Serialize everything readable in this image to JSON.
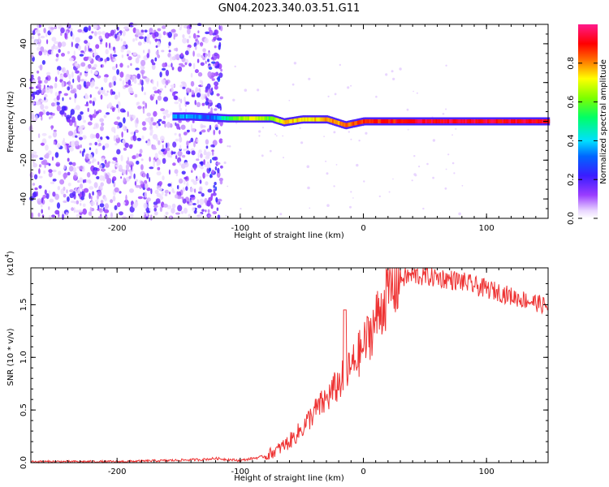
{
  "title": "GN04.2023.340.03.51.G11",
  "chart_data": [
    {
      "type": "heatmap",
      "title": "GN04.2023.340.03.51.G11",
      "xlabel": "Height of straight line (km)",
      "ylabel": "Frequency (Hz)",
      "xlim": [
        -270,
        150
      ],
      "ylim": [
        -50,
        50
      ],
      "x_ticks": [
        -200,
        -100,
        0,
        100
      ],
      "y_ticks": [
        -40,
        -20,
        0,
        20,
        40
      ],
      "colorbar": {
        "label": "Normalized spectral amplitude",
        "range": [
          0,
          1
        ],
        "ticks": [
          0.0,
          0.2,
          0.4,
          0.6,
          0.8
        ],
        "colormap": "rainbow (white-purple-blue-cyan-green-yellow-red-pink)"
      },
      "features": {
        "noise_region_x": [
          -270,
          -115
        ],
        "signal_ridge": [
          {
            "x": -155,
            "freq": 2.5,
            "amp": 0.35
          },
          {
            "x": -140,
            "freq": 2.5,
            "amp": 0.4
          },
          {
            "x": -125,
            "freq": 2.0,
            "amp": 0.3
          },
          {
            "x": -110,
            "freq": 1.5,
            "amp": 0.55
          },
          {
            "x": -90,
            "freq": 1.5,
            "amp": 0.75
          },
          {
            "x": -75,
            "freq": 1.5,
            "amp": 0.6
          },
          {
            "x": -65,
            "freq": -0.5,
            "amp": 0.8
          },
          {
            "x": -50,
            "freq": 1.0,
            "amp": 0.75
          },
          {
            "x": -30,
            "freq": 1.0,
            "amp": 0.8
          },
          {
            "x": -15,
            "freq": -2.0,
            "amp": 0.85
          },
          {
            "x": 0,
            "freq": 0.0,
            "amp": 0.9
          },
          {
            "x": 50,
            "freq": 0.0,
            "amp": 0.95
          },
          {
            "x": 100,
            "freq": 0.0,
            "amp": 0.95
          },
          {
            "x": 150,
            "freq": 0.0,
            "amp": 0.95
          }
        ]
      }
    },
    {
      "type": "line",
      "xlabel": "Height of straight line (km)",
      "ylabel": "SNR (10 * v/v)",
      "y_multiplier_label": "(x10",
      "y_multiplier_exp": "4",
      "xlim": [
        -270,
        150
      ],
      "ylim": [
        0,
        1.85
      ],
      "x_ticks": [
        -200,
        -100,
        0,
        100
      ],
      "y_ticks": [
        0.0,
        0.5,
        1.0,
        1.5
      ],
      "series_color": "#ee3333",
      "x": [
        -270,
        -240,
        -200,
        -160,
        -130,
        -120,
        -110,
        -100,
        -90,
        -80,
        -70,
        -60,
        -50,
        -40,
        -30,
        -20,
        -10,
        0,
        10,
        20,
        30,
        40,
        50,
        60,
        70,
        80,
        90,
        100,
        110,
        120,
        130,
        140,
        150
      ],
      "values": [
        0.01,
        0.01,
        0.01,
        0.02,
        0.03,
        0.04,
        0.03,
        0.02,
        0.04,
        0.06,
        0.12,
        0.2,
        0.32,
        0.48,
        0.6,
        0.75,
        0.9,
        1.1,
        1.35,
        1.62,
        1.75,
        1.78,
        1.77,
        1.76,
        1.74,
        1.72,
        1.68,
        1.65,
        1.62,
        1.58,
        1.55,
        1.52,
        1.48
      ]
    }
  ]
}
